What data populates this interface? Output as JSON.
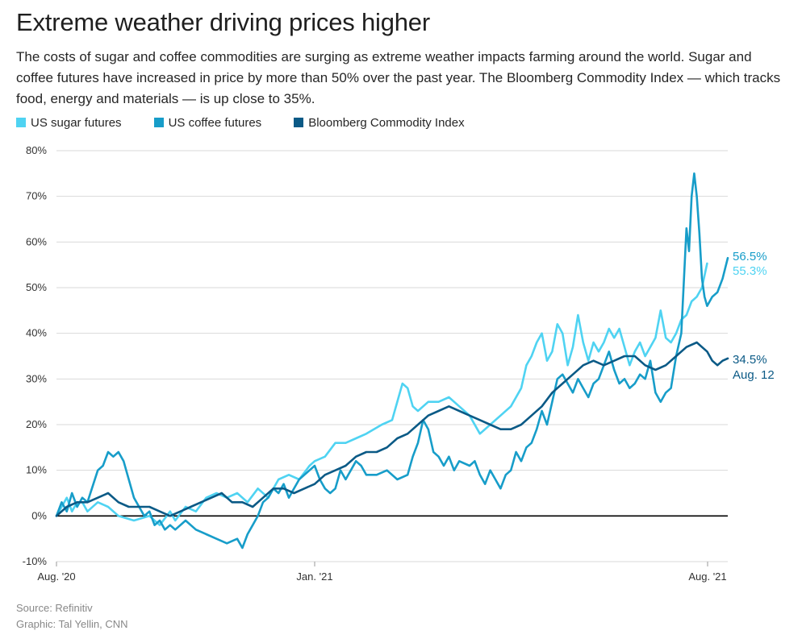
{
  "header": {
    "title": "Extreme weather driving prices higher",
    "subtitle": "The costs of sugar and coffee commodities are surging as extreme weather impacts farming around the world. Sugar and coffee futures have increased in price by more than 50% over the past year. The Bloomberg Commodity Index — which tracks food, energy and materials — is up close to 35%."
  },
  "footer": {
    "source": "Source: Refinitiv",
    "credit": "Graphic: Tal Yellin, CNN"
  },
  "colors": {
    "sugar": "#4fd3f2",
    "coffee": "#179dc9",
    "bloomberg": "#0b5a86",
    "grid": "#d9d9d9",
    "zero": "#000000"
  },
  "chart_data": {
    "type": "line",
    "title": "Extreme weather driving prices higher",
    "xlabel": "",
    "ylabel": "",
    "x_unit": "months since start of Aug. 2020",
    "xlim": [
      0,
      12.4
    ],
    "ylim": [
      -10,
      80
    ],
    "y_ticks": [
      -10,
      0,
      10,
      20,
      30,
      40,
      50,
      60,
      70,
      80
    ],
    "y_tick_labels": [
      "-10%",
      "0%",
      "10%",
      "20%",
      "30%",
      "40%",
      "50%",
      "60%",
      "70%",
      "80%"
    ],
    "x_ticks": [
      {
        "value": 0,
        "label": "Aug. '20"
      },
      {
        "value": 5,
        "label": "Jan. '21"
      },
      {
        "value": 12.4,
        "label": "Aug. '21"
      }
    ],
    "grid": true,
    "legend_position": "top-left",
    "end_annotations": {
      "coffee": "56.5%",
      "sugar": "55.3%",
      "bloomberg": "34.5%",
      "date": "Aug. 12"
    },
    "series": [
      {
        "name": "US sugar futures",
        "key": "sugar",
        "points": [
          [
            0,
            0
          ],
          [
            0.1,
            2
          ],
          [
            0.2,
            4
          ],
          [
            0.3,
            1
          ],
          [
            0.4,
            3
          ],
          [
            0.5,
            3
          ],
          [
            0.6,
            1
          ],
          [
            0.8,
            3
          ],
          [
            1.0,
            2
          ],
          [
            1.2,
            0
          ],
          [
            1.5,
            -1
          ],
          [
            1.8,
            0
          ],
          [
            2.0,
            -2
          ],
          [
            2.2,
            1
          ],
          [
            2.3,
            -1
          ],
          [
            2.5,
            2
          ],
          [
            2.7,
            1
          ],
          [
            2.9,
            4
          ],
          [
            3.1,
            5
          ],
          [
            3.3,
            4
          ],
          [
            3.5,
            5
          ],
          [
            3.7,
            3
          ],
          [
            3.9,
            6
          ],
          [
            4.1,
            4
          ],
          [
            4.3,
            8
          ],
          [
            4.5,
            9
          ],
          [
            4.7,
            8
          ],
          [
            4.9,
            11
          ],
          [
            5.0,
            12
          ],
          [
            5.2,
            13
          ],
          [
            5.4,
            16
          ],
          [
            5.6,
            16
          ],
          [
            5.8,
            17
          ],
          [
            6.0,
            18
          ],
          [
            6.3,
            20
          ],
          [
            6.5,
            21
          ],
          [
            6.7,
            29
          ],
          [
            6.8,
            28
          ],
          [
            6.9,
            24
          ],
          [
            7.0,
            23
          ],
          [
            7.2,
            25
          ],
          [
            7.4,
            25
          ],
          [
            7.6,
            26
          ],
          [
            7.8,
            24
          ],
          [
            8.0,
            22
          ],
          [
            8.2,
            18
          ],
          [
            8.4,
            20
          ],
          [
            8.6,
            22
          ],
          [
            8.8,
            24
          ],
          [
            9.0,
            28
          ],
          [
            9.1,
            33
          ],
          [
            9.2,
            35
          ],
          [
            9.3,
            38
          ],
          [
            9.4,
            40
          ],
          [
            9.5,
            34
          ],
          [
            9.6,
            36
          ],
          [
            9.7,
            42
          ],
          [
            9.8,
            40
          ],
          [
            9.9,
            33
          ],
          [
            10.0,
            37
          ],
          [
            10.1,
            44
          ],
          [
            10.2,
            38
          ],
          [
            10.3,
            34
          ],
          [
            10.4,
            38
          ],
          [
            10.5,
            36
          ],
          [
            10.6,
            38
          ],
          [
            10.7,
            41
          ],
          [
            10.8,
            39
          ],
          [
            10.9,
            41
          ],
          [
            11.0,
            37
          ],
          [
            11.1,
            33
          ],
          [
            11.2,
            36
          ],
          [
            11.3,
            38
          ],
          [
            11.4,
            35
          ],
          [
            11.5,
            37
          ],
          [
            11.6,
            39
          ],
          [
            11.7,
            45
          ],
          [
            11.8,
            39
          ],
          [
            11.9,
            38
          ],
          [
            12.0,
            40
          ],
          [
            12.1,
            43
          ],
          [
            12.2,
            44
          ],
          [
            12.3,
            47
          ],
          [
            12.4,
            48
          ],
          [
            12.5,
            50
          ],
          [
            12.6,
            55.3
          ]
        ]
      },
      {
        "name": "US coffee futures",
        "key": "coffee",
        "points": [
          [
            0,
            0
          ],
          [
            0.1,
            3
          ],
          [
            0.2,
            1
          ],
          [
            0.3,
            5
          ],
          [
            0.4,
            2
          ],
          [
            0.5,
            4
          ],
          [
            0.6,
            3
          ],
          [
            0.8,
            10
          ],
          [
            0.9,
            11
          ],
          [
            1.0,
            14
          ],
          [
            1.1,
            13
          ],
          [
            1.2,
            14
          ],
          [
            1.3,
            12
          ],
          [
            1.4,
            8
          ],
          [
            1.5,
            4
          ],
          [
            1.6,
            2
          ],
          [
            1.7,
            0
          ],
          [
            1.8,
            1
          ],
          [
            1.9,
            -2
          ],
          [
            2.0,
            -1
          ],
          [
            2.1,
            -3
          ],
          [
            2.2,
            -2
          ],
          [
            2.3,
            -3
          ],
          [
            2.5,
            -1
          ],
          [
            2.7,
            -3
          ],
          [
            2.9,
            -4
          ],
          [
            3.1,
            -5
          ],
          [
            3.3,
            -6
          ],
          [
            3.5,
            -5
          ],
          [
            3.6,
            -7
          ],
          [
            3.7,
            -4
          ],
          [
            3.8,
            -2
          ],
          [
            3.9,
            0
          ],
          [
            4.0,
            3
          ],
          [
            4.1,
            4
          ],
          [
            4.2,
            6
          ],
          [
            4.3,
            5
          ],
          [
            4.4,
            7
          ],
          [
            4.5,
            4
          ],
          [
            4.6,
            6
          ],
          [
            4.7,
            8
          ],
          [
            4.8,
            9
          ],
          [
            4.9,
            10
          ],
          [
            5.0,
            11
          ],
          [
            5.1,
            8
          ],
          [
            5.2,
            6
          ],
          [
            5.3,
            5
          ],
          [
            5.4,
            6
          ],
          [
            5.5,
            10
          ],
          [
            5.6,
            8
          ],
          [
            5.8,
            12
          ],
          [
            5.9,
            11
          ],
          [
            6.0,
            9
          ],
          [
            6.2,
            9
          ],
          [
            6.4,
            10
          ],
          [
            6.6,
            8
          ],
          [
            6.8,
            9
          ],
          [
            6.9,
            13
          ],
          [
            7.0,
            16
          ],
          [
            7.1,
            21
          ],
          [
            7.2,
            19
          ],
          [
            7.3,
            14
          ],
          [
            7.4,
            13
          ],
          [
            7.5,
            11
          ],
          [
            7.6,
            13
          ],
          [
            7.7,
            10
          ],
          [
            7.8,
            12
          ],
          [
            8.0,
            11
          ],
          [
            8.1,
            12
          ],
          [
            8.2,
            9
          ],
          [
            8.3,
            7
          ],
          [
            8.4,
            10
          ],
          [
            8.5,
            8
          ],
          [
            8.6,
            6
          ],
          [
            8.7,
            9
          ],
          [
            8.8,
            10
          ],
          [
            8.9,
            14
          ],
          [
            9.0,
            12
          ],
          [
            9.1,
            15
          ],
          [
            9.2,
            16
          ],
          [
            9.3,
            19
          ],
          [
            9.4,
            23
          ],
          [
            9.5,
            20
          ],
          [
            9.6,
            25
          ],
          [
            9.7,
            30
          ],
          [
            9.8,
            31
          ],
          [
            9.9,
            29
          ],
          [
            10.0,
            27
          ],
          [
            10.1,
            30
          ],
          [
            10.2,
            28
          ],
          [
            10.3,
            26
          ],
          [
            10.4,
            29
          ],
          [
            10.5,
            30
          ],
          [
            10.6,
            33
          ],
          [
            10.7,
            36
          ],
          [
            10.8,
            32
          ],
          [
            10.9,
            29
          ],
          [
            11.0,
            30
          ],
          [
            11.1,
            28
          ],
          [
            11.2,
            29
          ],
          [
            11.3,
            31
          ],
          [
            11.4,
            30
          ],
          [
            11.5,
            34
          ],
          [
            11.6,
            27
          ],
          [
            11.7,
            25
          ],
          [
            11.8,
            27
          ],
          [
            11.9,
            28
          ],
          [
            12.0,
            35
          ],
          [
            12.1,
            40
          ],
          [
            12.2,
            63
          ],
          [
            12.25,
            58
          ],
          [
            12.3,
            70
          ],
          [
            12.35,
            75
          ],
          [
            12.4,
            70
          ],
          [
            12.45,
            62
          ],
          [
            12.5,
            52
          ],
          [
            12.55,
            48
          ],
          [
            12.6,
            46
          ],
          [
            12.7,
            48
          ],
          [
            12.8,
            49
          ],
          [
            12.9,
            52
          ],
          [
            13.0,
            56.5
          ]
        ]
      },
      {
        "name": "Bloomberg Commodity Index",
        "key": "bloomberg",
        "points": [
          [
            0,
            0
          ],
          [
            0.2,
            2
          ],
          [
            0.4,
            3
          ],
          [
            0.6,
            3
          ],
          [
            0.8,
            4
          ],
          [
            1.0,
            5
          ],
          [
            1.2,
            3
          ],
          [
            1.4,
            2
          ],
          [
            1.6,
            2
          ],
          [
            1.8,
            2
          ],
          [
            2.0,
            1
          ],
          [
            2.2,
            0
          ],
          [
            2.4,
            1
          ],
          [
            2.6,
            2
          ],
          [
            2.8,
            3
          ],
          [
            3.0,
            4
          ],
          [
            3.2,
            5
          ],
          [
            3.4,
            3
          ],
          [
            3.6,
            3
          ],
          [
            3.8,
            2
          ],
          [
            4.0,
            4
          ],
          [
            4.2,
            6
          ],
          [
            4.4,
            6
          ],
          [
            4.6,
            5
          ],
          [
            4.8,
            6
          ],
          [
            5.0,
            7
          ],
          [
            5.2,
            9
          ],
          [
            5.4,
            10
          ],
          [
            5.6,
            11
          ],
          [
            5.8,
            13
          ],
          [
            6.0,
            14
          ],
          [
            6.2,
            14
          ],
          [
            6.4,
            15
          ],
          [
            6.6,
            17
          ],
          [
            6.8,
            18
          ],
          [
            7.0,
            20
          ],
          [
            7.2,
            22
          ],
          [
            7.4,
            23
          ],
          [
            7.6,
            24
          ],
          [
            7.8,
            23
          ],
          [
            8.0,
            22
          ],
          [
            8.2,
            21
          ],
          [
            8.4,
            20
          ],
          [
            8.6,
            19
          ],
          [
            8.8,
            19
          ],
          [
            9.0,
            20
          ],
          [
            9.2,
            22
          ],
          [
            9.4,
            24
          ],
          [
            9.6,
            27
          ],
          [
            9.8,
            29
          ],
          [
            10.0,
            31
          ],
          [
            10.2,
            33
          ],
          [
            10.4,
            34
          ],
          [
            10.6,
            33
          ],
          [
            10.8,
            34
          ],
          [
            11.0,
            35
          ],
          [
            11.2,
            35
          ],
          [
            11.4,
            33
          ],
          [
            11.6,
            32
          ],
          [
            11.8,
            33
          ],
          [
            12.0,
            35
          ],
          [
            12.2,
            37
          ],
          [
            12.4,
            38
          ],
          [
            12.5,
            37
          ],
          [
            12.6,
            36
          ],
          [
            12.7,
            34
          ],
          [
            12.8,
            33
          ],
          [
            12.9,
            34
          ],
          [
            13.0,
            34.5
          ]
        ]
      }
    ]
  }
}
